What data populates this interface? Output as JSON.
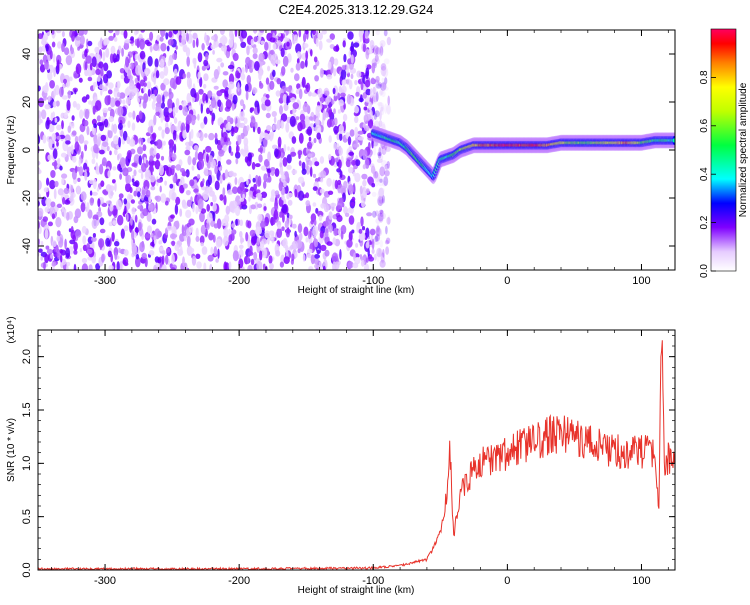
{
  "title": "C2E4.2025.313.12.29.G24",
  "colors": {
    "snr_line": "#e8332b",
    "spectrogram_noise": "#6a00ff",
    "frame": "#000000"
  },
  "chart_data": [
    {
      "type": "heatmap",
      "name": "spectrogram",
      "xlabel": "Height of straight line (km)",
      "ylabel": "Frequency (Hz)",
      "xlim": [
        -350,
        125
      ],
      "ylim": [
        -50,
        50
      ],
      "xticks": [
        -300,
        -200,
        -100,
        0,
        100
      ],
      "yticks": [
        -40,
        -20,
        0,
        20,
        40
      ],
      "grid": false,
      "noise_region_x": [
        -350,
        -100
      ],
      "signal_track": {
        "x": [
          -100,
          -95,
          -90,
          -85,
          -80,
          -75,
          -70,
          -65,
          -60,
          -55,
          -50,
          -45,
          -40,
          -35,
          -30,
          -25,
          -20,
          -10,
          0,
          10,
          20,
          30,
          40,
          50,
          60,
          70,
          80,
          90,
          100,
          110,
          125
        ],
        "y": [
          7,
          6,
          5,
          4,
          3,
          1,
          -2,
          -5,
          -8,
          -11,
          -4,
          -3,
          -2,
          0,
          1,
          2,
          2,
          2,
          2,
          2,
          2,
          2,
          3,
          3,
          3,
          3,
          3,
          3,
          3,
          4,
          4
        ],
        "amplitude": [
          0.45,
          0.4,
          0.45,
          0.5,
          0.45,
          0.5,
          0.55,
          0.5,
          0.45,
          0.4,
          0.5,
          0.45,
          0.55,
          0.6,
          0.7,
          0.75,
          0.85,
          0.9,
          0.95,
          0.9,
          0.95,
          0.85,
          0.7,
          0.6,
          0.55,
          0.65,
          0.75,
          0.85,
          0.6,
          0.5,
          0.45
        ]
      },
      "colorbar": {
        "label": "Normalized spectral amplitude",
        "range": [
          0,
          1
        ],
        "ticks": [
          "0.0",
          "0.2",
          "0.4",
          "0.6",
          "0.8"
        ]
      }
    },
    {
      "type": "line",
      "name": "snr",
      "xlabel": "Height of straight line (km)",
      "ylabel": "SNR (10 * v/v)",
      "yscale_label": "(x10⁴)",
      "xlim": [
        -350,
        125
      ],
      "ylim": [
        0,
        2.25
      ],
      "xticks": [
        -300,
        -200,
        -100,
        0,
        100
      ],
      "yticks": [
        "0.0",
        "0.5",
        "1.0",
        "1.5",
        "2.0"
      ],
      "grid": false,
      "x": [
        -350,
        -200,
        -100,
        -80,
        -60,
        -55,
        -50,
        -47,
        -45,
        -43,
        -41,
        -40,
        -38,
        -35,
        -30,
        -20,
        -10,
        0,
        10,
        20,
        30,
        40,
        50,
        60,
        70,
        80,
        90,
        95,
        100,
        105,
        110,
        113,
        115,
        117,
        120,
        125
      ],
      "y": [
        0.01,
        0.01,
        0.02,
        0.04,
        0.1,
        0.2,
        0.35,
        0.55,
        0.7,
        1.3,
        0.5,
        0.3,
        0.5,
        0.7,
        0.85,
        1.0,
        1.05,
        1.1,
        1.15,
        1.2,
        1.25,
        1.3,
        1.25,
        1.2,
        1.15,
        1.12,
        1.1,
        1.15,
        1.1,
        1.1,
        1.05,
        0.55,
        2.2,
        1.0,
        1.05,
        1.05
      ]
    }
  ]
}
